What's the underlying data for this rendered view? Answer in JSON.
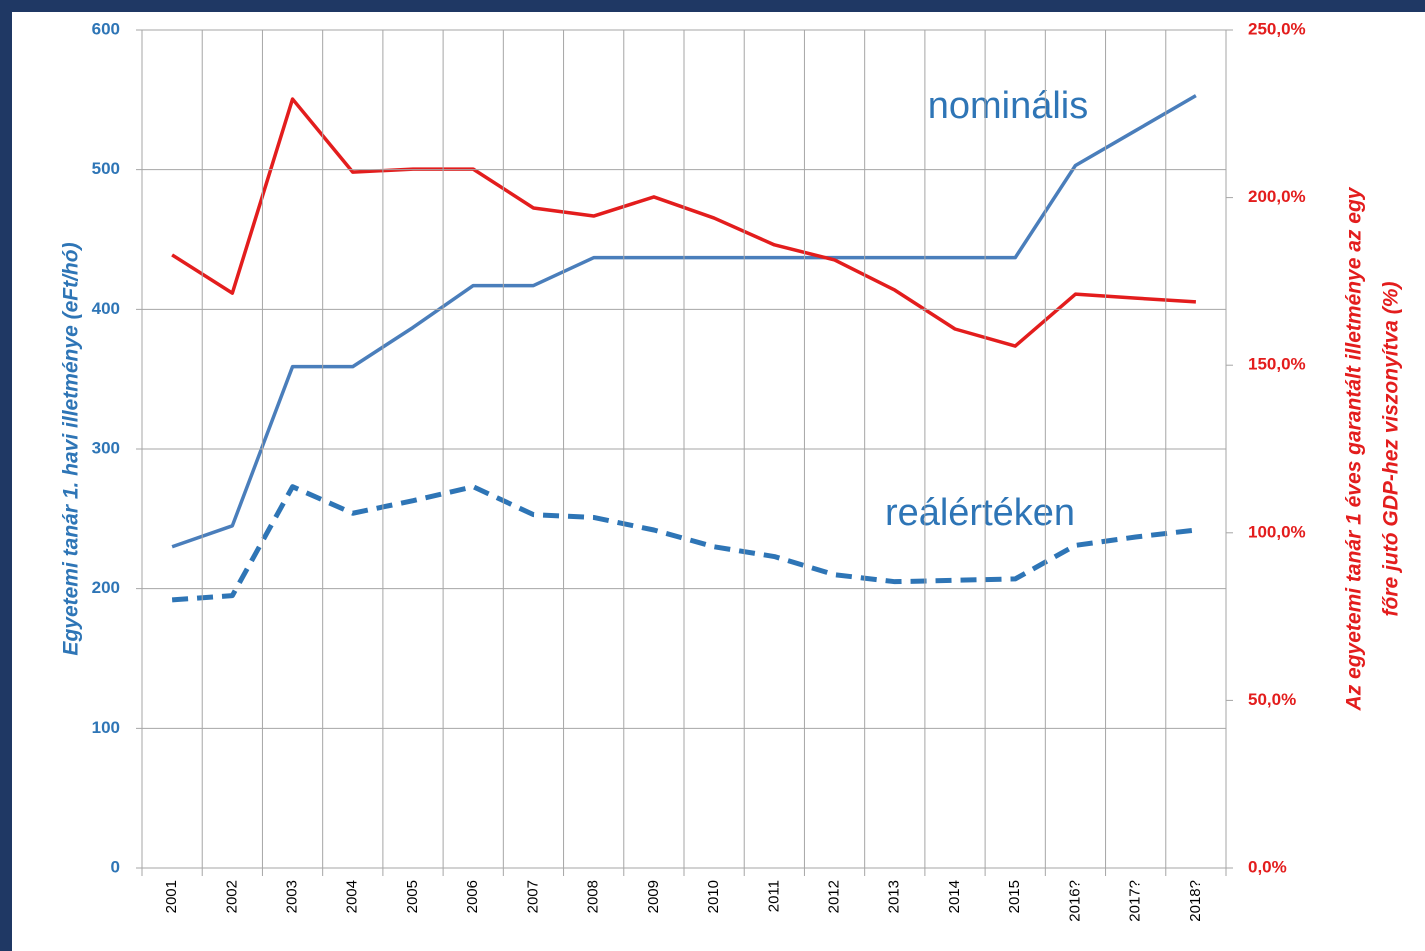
{
  "chart_data": {
    "type": "line",
    "y_label": "Egyetemi tanár 1. havi illetménye (eFt/hó)",
    "y2_label": [
      "Az egyetemi tanár 1 éves garantált illetménye az egy",
      "főre jutó GDP-hez viszonyítva (%)"
    ],
    "categories": [
      "2001",
      "2002",
      "2003",
      "2004",
      "2005",
      "2006",
      "2007",
      "2008",
      "2009",
      "2010",
      "2011",
      "2012",
      "2013",
      "2014",
      "2015",
      "2016?",
      "2017?",
      "2018?"
    ],
    "series": [
      {
        "name": "nominális",
        "color": "#4a7ebb",
        "dashed": false,
        "values": [
          230,
          245,
          359,
          359,
          387,
          417,
          417,
          437,
          437,
          437,
          437,
          437,
          437,
          437,
          437,
          503,
          528,
          553
        ]
      },
      {
        "name": "reálértéken",
        "color": "#2e75b6",
        "dashed": true,
        "values": [
          192,
          195,
          273,
          254,
          263,
          273,
          253,
          251,
          242,
          230,
          223,
          210,
          205,
          206,
          207,
          231,
          237,
          242
        ]
      },
      {
        "color": "#e31d1d",
        "dashed": false,
        "axis": "y2",
        "values": [
          182.9,
          171.5,
          229.4,
          207.6,
          208.5,
          208.5,
          196.9,
          194.5,
          200.2,
          193.9,
          185.9,
          181.4,
          172.4,
          160.8,
          155.7,
          171.2,
          170.0,
          168.9
        ]
      }
    ],
    "ylim": [
      0,
      600
    ],
    "yticks": [
      0,
      100,
      200,
      300,
      400,
      500,
      600
    ],
    "y2lim": [
      0,
      250
    ],
    "y2ticks": [
      {
        "value": 0,
        "label": "0,0%"
      },
      {
        "value": 50,
        "label": "50,0%"
      },
      {
        "value": 100,
        "label": "100,0%"
      },
      {
        "value": 150,
        "label": "150,0%"
      },
      {
        "value": 200,
        "label": "200,0%"
      },
      {
        "value": 250,
        "label": "250,0%"
      }
    ],
    "grid": true
  }
}
